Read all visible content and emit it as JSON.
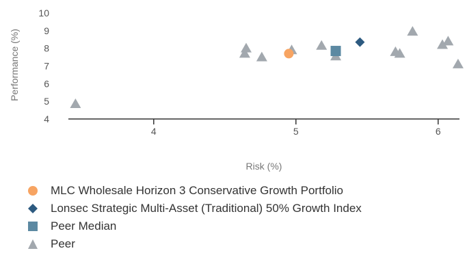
{
  "chart_data": {
    "type": "scatter",
    "title": "",
    "xlabel": "Risk (%)",
    "ylabel": "Performance (%)",
    "xlim": [
      3.4,
      6.15
    ],
    "ylim": [
      4,
      10
    ],
    "xticks": [
      4,
      5,
      6
    ],
    "yticks": [
      4,
      5,
      6,
      7,
      8,
      9,
      10
    ],
    "grid": false,
    "legend_position": "bottom",
    "series": [
      {
        "name": "MLC Wholesale Horizon 3 Conservative Growth Portfolio",
        "marker": "circle",
        "color": "#f7a462",
        "points": [
          [
            4.95,
            7.7
          ]
        ]
      },
      {
        "name": "Lonsec Strategic Multi-Asset (Traditional) 50% Growth Index",
        "marker": "diamond",
        "color": "#2d5a80",
        "points": [
          [
            5.45,
            8.35
          ]
        ]
      },
      {
        "name": "Peer Median",
        "marker": "square",
        "color": "#5c89a2",
        "points": [
          [
            5.28,
            7.85
          ]
        ]
      },
      {
        "name": "Peer",
        "marker": "triangle",
        "color": "#a2a8ae",
        "points": [
          [
            3.45,
            4.85
          ],
          [
            4.64,
            7.7
          ],
          [
            4.65,
            8.0
          ],
          [
            4.76,
            7.5
          ],
          [
            4.97,
            7.9
          ],
          [
            5.18,
            8.15
          ],
          [
            5.28,
            7.55
          ],
          [
            5.7,
            7.8
          ],
          [
            5.73,
            7.7
          ],
          [
            5.82,
            8.95
          ],
          [
            6.03,
            8.2
          ],
          [
            6.07,
            8.4
          ],
          [
            6.14,
            7.1
          ]
        ]
      }
    ]
  }
}
